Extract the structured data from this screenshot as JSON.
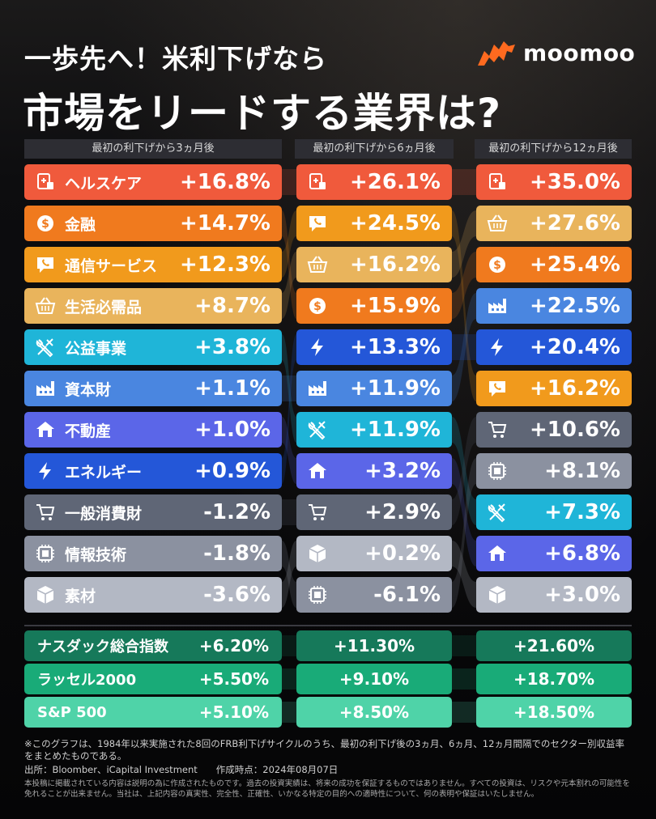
{
  "title_line1": "一歩先へ！米利下げなら",
  "title_line2": "市場をリードする業界は?",
  "logo": {
    "text": "moomoo",
    "icon": "moomoo-bull-icon",
    "color": "#ff6a1f"
  },
  "chart_data": {
    "type": "table",
    "columns": [
      "最初の利下げから3ヵ月後",
      "最初の利下げから6ヵ月後",
      "最初の利下げから12ヵ月後"
    ],
    "sectors": [
      {
        "name": "ヘルスケア",
        "icon": "healthcare-icon",
        "color": "#f05a3c"
      },
      {
        "name": "金融",
        "icon": "dollar-coin-icon",
        "color": "#f07a1e"
      },
      {
        "name": "通信サービス",
        "icon": "phone-chat-icon",
        "color": "#f19a1c"
      },
      {
        "name": "生活必需品",
        "icon": "basket-icon",
        "color": "#e9b45c"
      },
      {
        "name": "公益事業",
        "icon": "tools-icon",
        "color": "#1fb5d8"
      },
      {
        "name": "資本財",
        "icon": "factory-icon",
        "color": "#4a86e0"
      },
      {
        "name": "不動産",
        "icon": "house-icon",
        "color": "#5b66e8"
      },
      {
        "name": "エネルギー",
        "icon": "lightning-icon",
        "color": "#2457d8"
      },
      {
        "name": "一般消費財",
        "icon": "cart-icon",
        "color": "#5f6676"
      },
      {
        "name": "情報技術",
        "icon": "chip-icon",
        "color": "#8b91a0"
      },
      {
        "name": "素材",
        "icon": "box-icon",
        "color": "#b3b8c4"
      }
    ],
    "rankings": [
      [
        {
          "sector": "ヘルスケア",
          "value": "+16.8%"
        },
        {
          "sector": "金融",
          "value": "+14.7%"
        },
        {
          "sector": "通信サービス",
          "value": "+12.3%"
        },
        {
          "sector": "生活必需品",
          "value": "+8.7%"
        },
        {
          "sector": "公益事業",
          "value": "+3.8%"
        },
        {
          "sector": "資本財",
          "value": "+1.1%"
        },
        {
          "sector": "不動産",
          "value": "+1.0%"
        },
        {
          "sector": "エネルギー",
          "value": "+0.9%"
        },
        {
          "sector": "一般消費財",
          "value": "-1.2%"
        },
        {
          "sector": "情報技術",
          "value": "-1.8%"
        },
        {
          "sector": "素材",
          "value": "-3.6%"
        }
      ],
      [
        {
          "sector": "ヘルスケア",
          "value": "+26.1%"
        },
        {
          "sector": "通信サービス",
          "value": "+24.5%"
        },
        {
          "sector": "生活必需品",
          "value": "+16.2%"
        },
        {
          "sector": "金融",
          "value": "+15.9%"
        },
        {
          "sector": "エネルギー",
          "value": "+13.3%"
        },
        {
          "sector": "資本財",
          "value": "+11.9%"
        },
        {
          "sector": "公益事業",
          "value": "+11.9%"
        },
        {
          "sector": "不動産",
          "value": "+3.2%"
        },
        {
          "sector": "一般消費財",
          "value": "+2.9%"
        },
        {
          "sector": "素材",
          "value": "+0.2%"
        },
        {
          "sector": "情報技術",
          "value": "-6.1%"
        }
      ],
      [
        {
          "sector": "ヘルスケア",
          "value": "+35.0%"
        },
        {
          "sector": "生活必需品",
          "value": "+27.6%"
        },
        {
          "sector": "金融",
          "value": "+25.4%"
        },
        {
          "sector": "資本財",
          "value": "+22.5%"
        },
        {
          "sector": "エネルギー",
          "value": "+20.4%"
        },
        {
          "sector": "通信サービス",
          "value": "+16.2%"
        },
        {
          "sector": "一般消費財",
          "value": "+10.6%"
        },
        {
          "sector": "情報技術",
          "value": "+8.1%"
        },
        {
          "sector": "公益事業",
          "value": "+7.3%"
        },
        {
          "sector": "不動産",
          "value": "+6.8%"
        },
        {
          "sector": "素材",
          "value": "+3.0%"
        }
      ]
    ],
    "indices": [
      {
        "name": "ナスダック総合指数",
        "color": "#16795a",
        "values": [
          "+6.20%",
          "+11.30%",
          "+21.60%"
        ]
      },
      {
        "name": "ラッセル2000",
        "color": "#19ab78",
        "values": [
          "+5.50%",
          "+9.10%",
          "+18.70%"
        ]
      },
      {
        "name": "S&P 500",
        "color": "#4fd3a8",
        "values": [
          "+5.10%",
          "+8.50%",
          "+18.50%"
        ]
      }
    ]
  },
  "footnote": "※このグラフは、1984年以来実施された8回のFRB利下げサイクルのうち、最初の利下げ後の3ヵ月、6ヵ月、12ヵ月間隔でのセクター別収益率をまとめたものである。",
  "source": "出所：Bloomber、iCapital Investment　　作成時点：2024年08月07日",
  "disclaimer": "本投稿に掲載されている内容は説明の為に作成されたものです。過去の投資実績は、将来の成功を保証するものではありません。すべての投資は、リスクや元本割れの可能性を免れることが出来ません。当社は、上記内容の真実性、完全性、正確性、いかなる特定の目的への適時性について、何の表明や保証はいたしません。"
}
